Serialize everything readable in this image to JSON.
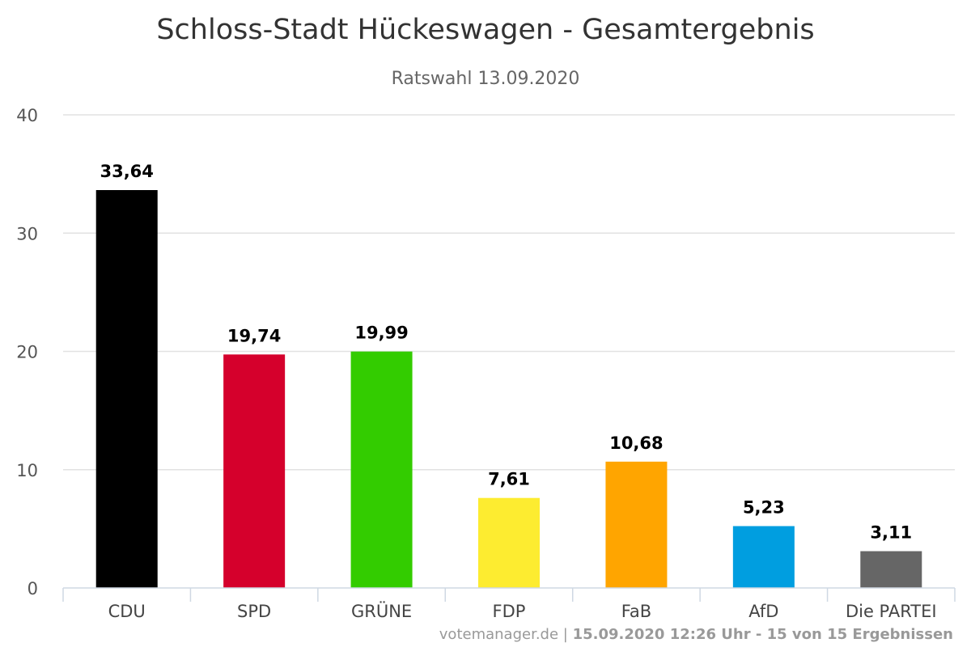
{
  "chart_data": {
    "type": "bar",
    "title": "Schloss-Stadt Hückeswagen - Gesamtergebnis",
    "subtitle": "Ratswahl 13.09.2020",
    "xlabel": "",
    "ylabel": "",
    "ylim": [
      0,
      40
    ],
    "yticks": [
      0,
      10,
      20,
      30,
      40
    ],
    "grid": true,
    "legend": "none",
    "categories": [
      "CDU",
      "SPD",
      "GRÜNE",
      "FDP",
      "FaB",
      "AfD",
      "Die PARTEI"
    ],
    "values": [
      33.64,
      19.74,
      19.99,
      7.61,
      10.68,
      5.23,
      3.11
    ],
    "value_labels": [
      "33,64",
      "19,74",
      "19,99",
      "7,61",
      "10,68",
      "5,23",
      "3,11"
    ],
    "colors": [
      "#000000",
      "#d5002c",
      "#33cc00",
      "#fdec30",
      "#ffa500",
      "#009ee0",
      "#666666"
    ]
  },
  "credits": {
    "site": "votemanager.de",
    "separator": " | ",
    "info": "15.09.2020 12:26 Uhr - 15 von 15 Ergebnissen"
  }
}
